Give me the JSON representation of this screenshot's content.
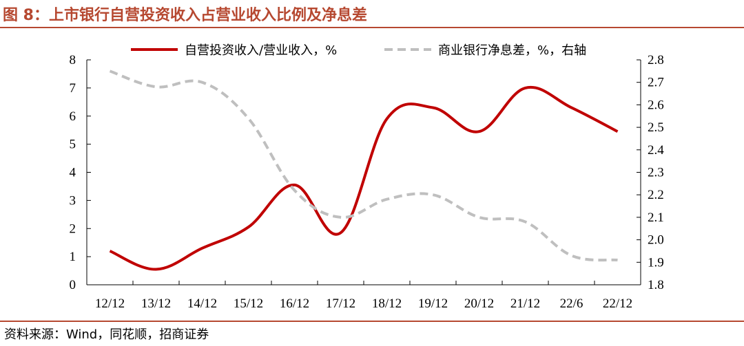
{
  "figure": {
    "title": "图 8：上市银行自营投资收入占营业收入比例及净息差",
    "source": "资料来源：Wind，同花顺，招商证券"
  },
  "colors": {
    "title": "#B64830",
    "rule": "#B64830",
    "series_primary": "#C00000",
    "series_secondary": "#BFBFBF",
    "axis": "#000000"
  },
  "chart_data": {
    "type": "line",
    "categories": [
      "12/12",
      "13/12",
      "14/12",
      "15/12",
      "16/12",
      "17/12",
      "18/12",
      "19/12",
      "20/12",
      "21/12",
      "22/6",
      "22/12"
    ],
    "left_axis": {
      "ylim": [
        0,
        8
      ],
      "ticks": [
        "0",
        "1",
        "2",
        "3",
        "4",
        "5",
        "6",
        "7",
        "8"
      ]
    },
    "right_axis": {
      "ylim": [
        1.8,
        2.8
      ],
      "ticks": [
        "1.8",
        "1.9",
        "2.0",
        "2.1",
        "2.2",
        "2.3",
        "2.4",
        "2.5",
        "2.6",
        "2.7",
        "2.8"
      ]
    },
    "series": [
      {
        "name": "自营投资收入/营业收入，%",
        "axis": "left",
        "style": "solid",
        "values": [
          1.2,
          0.55,
          1.3,
          2.05,
          3.55,
          1.85,
          5.9,
          6.3,
          5.45,
          7.0,
          6.3,
          5.45
        ]
      },
      {
        "name": "商业银行净息差，%，右轴",
        "axis": "right",
        "style": "dashed",
        "values": [
          2.75,
          2.68,
          2.7,
          2.54,
          2.22,
          2.1,
          2.18,
          2.2,
          2.1,
          2.08,
          1.93,
          1.91
        ]
      }
    ],
    "grid": false,
    "legend": "top"
  }
}
